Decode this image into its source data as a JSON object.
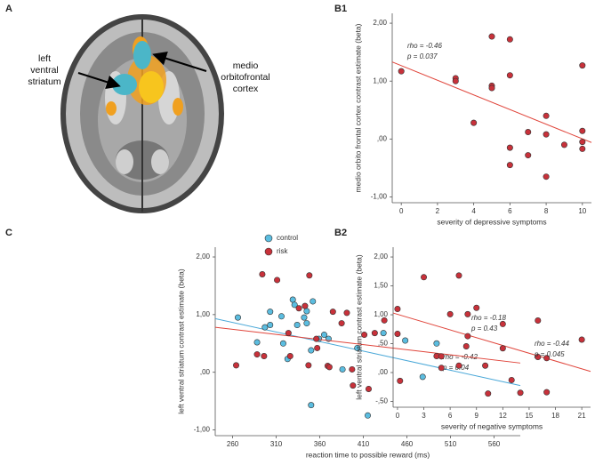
{
  "panel_a": {
    "label": "A",
    "left_label": [
      "left",
      "ventral",
      "striatum"
    ],
    "right_label": [
      "medio",
      "orbitofrontal",
      "cortex"
    ]
  },
  "chart_data": [
    {
      "type": "scatter",
      "panel_label": "B1",
      "x_label": "severity of depressive symptoms",
      "y_label": "medio orbito frontal cortex contrast estimate (beta)",
      "xlim": [
        -0.5,
        10.5
      ],
      "ylim": [
        -1.1,
        2.17
      ],
      "xticks": [
        0,
        2,
        4,
        6,
        8,
        10
      ],
      "yticks": [
        {
          "value": 2,
          "label": "2,00"
        },
        {
          "value": 1,
          "label": "1,00"
        },
        {
          "value": 0,
          "label": ",00"
        },
        {
          "value": -1,
          "label": "-1,00"
        }
      ],
      "legend": false,
      "series": [
        {
          "color": "#c8313a",
          "trend_color": "#e0443a",
          "x": [
            0,
            3,
            3,
            4,
            5,
            5,
            5,
            6,
            6,
            6,
            6,
            7,
            7,
            8,
            8,
            8,
            9,
            10,
            10,
            10,
            10
          ],
          "values": [
            1.17,
            1.05,
            1.0,
            0.28,
            1.77,
            0.92,
            0.88,
            1.72,
            1.1,
            -0.15,
            -0.45,
            0.12,
            -0.28,
            0.4,
            0.08,
            -0.65,
            -0.1,
            1.27,
            0.14,
            -0.05,
            -0.17
          ],
          "trend_x": [
            -0.5,
            10.5
          ],
          "trend_y": [
            1.33,
            -0.06
          ],
          "annotations": [
            "rho = -0.46",
            "p = 0.037"
          ]
        }
      ]
    },
    {
      "type": "scatter",
      "panel_label": "C",
      "x_label": "reaction time to possible reward (ms)",
      "y_label": "left ventral striatum contrast estimate (beta)",
      "xlim": [
        240,
        590
      ],
      "ylim": [
        -1.1,
        2.17
      ],
      "xticks": [
        260,
        310,
        360,
        410,
        460,
        510,
        560
      ],
      "yticks": [
        {
          "value": 2,
          "label": "2,00"
        },
        {
          "value": 1,
          "label": "1,00"
        },
        {
          "value": 0,
          "label": ",00"
        },
        {
          "value": -1,
          "label": "-1,00"
        }
      ],
      "legend": true,
      "series": [
        {
          "name": "control",
          "color": "#5bbde0",
          "trend_color": "#4aa8d8",
          "x": [
            266,
            288,
            297,
            303,
            303,
            316,
            318,
            323,
            329,
            331,
            334,
            342,
            345,
            345,
            350,
            352,
            350,
            359,
            365,
            370,
            386,
            403,
            415,
            433,
            458,
            478,
            494
          ],
          "values": [
            0.95,
            0.52,
            0.78,
            1.05,
            0.82,
            0.97,
            0.5,
            0.23,
            1.26,
            1.17,
            0.82,
            0.95,
            1.06,
            0.85,
            0.38,
            1.23,
            -0.57,
            0.58,
            0.65,
            0.58,
            0.05,
            0.42,
            -0.75,
            0.68,
            0.55,
            -0.08,
            0.5
          ],
          "trend_x": [
            240,
            590
          ],
          "trend_y": [
            0.93,
            -0.23
          ],
          "annotations": [
            "rho = -0.42",
            "p = 0.04"
          ]
        },
        {
          "name": "risk",
          "color": "#c8313a",
          "trend_color": "#e0443a",
          "x": [
            264,
            288,
            294,
            296,
            311,
            324,
            326,
            336,
            343,
            347,
            348,
            356,
            357,
            369,
            371,
            375,
            385,
            391,
            397,
            398,
            411,
            416,
            423,
            434,
            452,
            494,
            528,
            553
          ],
          "values": [
            0.12,
            0.31,
            1.7,
            0.28,
            1.6,
            0.68,
            0.28,
            1.11,
            1.15,
            0.12,
            1.68,
            0.58,
            0.42,
            0.11,
            0.09,
            1.05,
            0.85,
            1.03,
            0.05,
            -0.23,
            0.65,
            -0.29,
            0.68,
            0.9,
            -0.15,
            0.28,
            0.45,
            -0.37
          ],
          "trend_x": [
            240,
            590
          ],
          "trend_y": [
            0.78,
            0.16
          ],
          "annotations": [
            "rho = -0.18",
            "p = 0.43"
          ]
        }
      ]
    },
    {
      "type": "scatter",
      "panel_label": "B2",
      "x_label": "severity of negative symptoms",
      "y_label": "left ventral striatum contrast estimate (beta)",
      "xlim": [
        -0.5,
        22
      ],
      "ylim": [
        -0.6,
        2.17
      ],
      "xticks": [
        0,
        3,
        6,
        9,
        12,
        15,
        18,
        21
      ],
      "yticks": [
        {
          "value": 2,
          "label": "2,00"
        },
        {
          "value": 1.5,
          "label": "1,50"
        },
        {
          "value": 1,
          "label": "1,00"
        },
        {
          "value": 0.5,
          "label": ",50"
        },
        {
          "value": 0,
          "label": ",00"
        },
        {
          "value": -0.5,
          "label": "-,50"
        }
      ],
      "legend": false,
      "series": [
        {
          "color": "#c8313a",
          "trend_color": "#e0443a",
          "x": [
            0,
            0,
            3,
            5,
            5,
            6,
            7,
            7,
            8,
            8,
            9,
            10,
            12,
            12,
            13,
            14,
            16,
            16,
            17,
            17,
            21
          ],
          "values": [
            1.1,
            0.67,
            1.65,
            0.28,
            0.08,
            1.01,
            1.68,
            0.12,
            0.63,
            1.01,
            1.12,
            0.12,
            0.84,
            0.42,
            -0.13,
            -0.35,
            0.9,
            0.27,
            0.25,
            -0.34,
            0.57
          ],
          "trend_x": [
            -0.5,
            22
          ],
          "trend_y": [
            1.03,
            0.02
          ],
          "annotations": [
            "rho = -0.44",
            "p = 0.045"
          ]
        }
      ]
    }
  ]
}
